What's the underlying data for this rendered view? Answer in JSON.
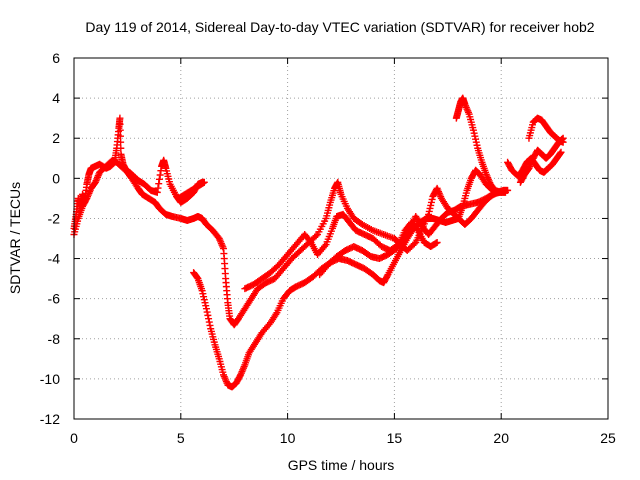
{
  "chart_data": {
    "type": "scatter",
    "title": "Day 119 of 2014, Sidereal Day-to-day VTEC variation (SDTVAR) for receiver hob2",
    "xlabel": "GPS time / hours",
    "ylabel": "SDTVAR / TECUs",
    "xlim": [
      0,
      25
    ],
    "ylim": [
      -12,
      6
    ],
    "xticks": [
      "0",
      "5",
      "10",
      "15",
      "20",
      "25"
    ],
    "yticks": [
      "-12",
      "-10",
      "-8",
      "-6",
      "-4",
      "-2",
      "0",
      "2",
      "4",
      "6"
    ],
    "grid": true,
    "marker": "+",
    "color": "#ff0000",
    "series": [
      {
        "points": [
          [
            0.0,
            -2.5
          ],
          [
            0.1,
            -1.8
          ],
          [
            0.2,
            -1.0
          ],
          [
            0.3,
            -1.5
          ],
          [
            0.4,
            -0.8
          ],
          [
            0.5,
            -1.2
          ],
          [
            0.6,
            -0.3
          ],
          [
            0.7,
            0.2
          ],
          [
            0.8,
            0.5
          ],
          [
            1.0,
            0.6
          ],
          [
            1.2,
            0.7
          ],
          [
            1.5,
            0.5
          ],
          [
            1.7,
            0.6
          ],
          [
            1.9,
            0.8
          ],
          [
            2.0,
            1.5
          ],
          [
            2.1,
            2.5
          ],
          [
            2.15,
            3.0
          ],
          [
            2.2,
            1.2
          ],
          [
            2.3,
            0.7
          ],
          [
            2.5,
            0.3
          ],
          [
            2.7,
            0.0
          ],
          [
            3.0,
            -0.5
          ],
          [
            3.2,
            -0.8
          ],
          [
            3.5,
            -1.0
          ],
          [
            3.8,
            -1.2
          ],
          [
            4.0,
            -1.5
          ],
          [
            4.3,
            -1.8
          ],
          [
            4.6,
            -1.9
          ],
          [
            5.0,
            -2.0
          ],
          [
            5.3,
            -2.1
          ],
          [
            5.6,
            -2.0
          ],
          [
            5.8,
            -1.9
          ],
          [
            6.0,
            -2.0
          ],
          [
            6.2,
            -2.3
          ],
          [
            6.5,
            -2.6
          ],
          [
            6.8,
            -3.0
          ],
          [
            7.0,
            -3.5
          ],
          [
            7.1,
            -5.0
          ],
          [
            7.2,
            -6.2
          ],
          [
            7.3,
            -7.0
          ],
          [
            7.5,
            -7.3
          ],
          [
            7.7,
            -7.0
          ],
          [
            8.0,
            -6.5
          ],
          [
            8.3,
            -6.0
          ],
          [
            8.6,
            -5.5
          ],
          [
            9.0,
            -5.2
          ],
          [
            9.4,
            -5.0
          ],
          [
            9.8,
            -4.5
          ],
          [
            10.2,
            -4.0
          ],
          [
            10.6,
            -3.6
          ],
          [
            11.0,
            -3.2
          ],
          [
            11.4,
            -2.8
          ],
          [
            11.8,
            -2.0
          ],
          [
            12.0,
            -1.2
          ],
          [
            12.2,
            -0.5
          ],
          [
            12.35,
            -0.2
          ],
          [
            12.5,
            -0.8
          ],
          [
            12.8,
            -1.5
          ],
          [
            13.1,
            -2.0
          ],
          [
            13.5,
            -2.3
          ],
          [
            14.0,
            -2.6
          ],
          [
            14.5,
            -2.8
          ],
          [
            15.0,
            -3.0
          ],
          [
            15.3,
            -3.3
          ],
          [
            15.6,
            -3.6
          ],
          [
            16.0,
            -3.2
          ],
          [
            16.3,
            -2.5
          ],
          [
            16.6,
            -1.8
          ],
          [
            16.8,
            -0.9
          ],
          [
            17.0,
            -0.5
          ],
          [
            17.2,
            -1.0
          ],
          [
            17.5,
            -1.5
          ],
          [
            17.8,
            -1.8
          ],
          [
            18.0,
            -2.0
          ],
          [
            18.3,
            -2.3
          ],
          [
            18.6,
            -2.0
          ],
          [
            18.9,
            -1.6
          ],
          [
            19.2,
            -1.2
          ],
          [
            19.5,
            -0.9
          ],
          [
            19.8,
            -0.7
          ],
          [
            20.1,
            -0.6
          ],
          [
            20.3,
            -0.6
          ]
        ]
      },
      {
        "points": [
          [
            0.0,
            -2.8
          ],
          [
            0.2,
            -2.0
          ],
          [
            0.4,
            -1.4
          ],
          [
            0.6,
            -1.0
          ],
          [
            0.8,
            -0.5
          ],
          [
            1.0,
            -0.2
          ],
          [
            1.2,
            0.3
          ],
          [
            1.5,
            0.6
          ],
          [
            1.8,
            0.9
          ],
          [
            2.0,
            0.8
          ],
          [
            2.3,
            0.5
          ],
          [
            2.6,
            0.3
          ],
          [
            2.8,
            0.1
          ],
          [
            3.0,
            -0.1
          ],
          [
            3.3,
            -0.3
          ],
          [
            3.6,
            -0.6
          ],
          [
            3.9,
            -0.7
          ],
          [
            4.1,
            0.6
          ],
          [
            4.2,
            0.9
          ],
          [
            4.3,
            0.5
          ],
          [
            4.5,
            -0.3
          ],
          [
            4.8,
            -0.9
          ],
          [
            5.0,
            -1.2
          ],
          [
            5.3,
            -1.0
          ],
          [
            5.6,
            -0.7
          ],
          [
            5.8,
            -0.3
          ],
          [
            6.0,
            -0.2
          ],
          [
            6.1,
            -0.2
          ],
          [
            5.8,
            -0.4
          ],
          [
            5.5,
            -0.6
          ],
          [
            5.2,
            -0.8
          ],
          [
            4.9,
            -1.0
          ]
        ]
      },
      {
        "points": [
          [
            5.6,
            -4.7
          ],
          [
            5.8,
            -5.0
          ],
          [
            6.0,
            -5.6
          ],
          [
            6.2,
            -6.5
          ],
          [
            6.4,
            -7.5
          ],
          [
            6.6,
            -8.3
          ],
          [
            6.8,
            -9.0
          ],
          [
            7.0,
            -9.8
          ],
          [
            7.2,
            -10.3
          ],
          [
            7.4,
            -10.4
          ],
          [
            7.6,
            -10.2
          ],
          [
            7.8,
            -9.8
          ],
          [
            8.0,
            -9.3
          ],
          [
            8.2,
            -8.7
          ],
          [
            8.5,
            -8.2
          ],
          [
            8.8,
            -7.7
          ],
          [
            9.2,
            -7.2
          ],
          [
            9.5,
            -6.7
          ],
          [
            9.8,
            -6.0
          ],
          [
            10.1,
            -5.6
          ],
          [
            10.4,
            -5.4
          ],
          [
            10.8,
            -5.2
          ],
          [
            11.2,
            -4.9
          ],
          [
            11.6,
            -4.5
          ],
          [
            12.0,
            -4.2
          ],
          [
            12.4,
            -4.0
          ],
          [
            12.8,
            -4.1
          ],
          [
            13.2,
            -4.3
          ],
          [
            13.6,
            -4.5
          ],
          [
            14.0,
            -4.8
          ],
          [
            14.3,
            -5.1
          ],
          [
            14.5,
            -5.2
          ],
          [
            14.7,
            -4.8
          ],
          [
            15.0,
            -4.2
          ],
          [
            15.3,
            -3.6
          ],
          [
            15.6,
            -3.0
          ],
          [
            15.9,
            -2.5
          ],
          [
            16.2,
            -2.2
          ],
          [
            16.5,
            -2.0
          ],
          [
            16.8,
            -2.0
          ],
          [
            17.1,
            -2.1
          ],
          [
            17.4,
            -2.2
          ],
          [
            17.7,
            -2.1
          ],
          [
            18.0,
            -2.0
          ],
          [
            18.2,
            -1.4
          ],
          [
            18.4,
            -0.6
          ],
          [
            18.6,
            0.0
          ],
          [
            18.8,
            0.4
          ],
          [
            19.0,
            0.2
          ],
          [
            19.3,
            -0.3
          ],
          [
            19.6,
            -0.6
          ],
          [
            19.9,
            -0.7
          ],
          [
            20.2,
            -0.7
          ]
        ]
      },
      {
        "points": [
          [
            8.0,
            -5.5
          ],
          [
            8.4,
            -5.3
          ],
          [
            8.8,
            -5.0
          ],
          [
            9.2,
            -4.7
          ],
          [
            9.6,
            -4.3
          ],
          [
            10.0,
            -3.8
          ],
          [
            10.4,
            -3.3
          ],
          [
            10.8,
            -2.8
          ],
          [
            11.1,
            -3.2
          ],
          [
            11.4,
            -3.8
          ],
          [
            11.8,
            -3.3
          ],
          [
            12.1,
            -2.5
          ],
          [
            12.3,
            -1.9
          ],
          [
            12.6,
            -1.8
          ],
          [
            12.9,
            -2.2
          ],
          [
            13.2,
            -2.6
          ],
          [
            13.6,
            -2.8
          ],
          [
            14.0,
            -3.0
          ],
          [
            14.4,
            -3.4
          ],
          [
            14.8,
            -3.6
          ],
          [
            15.2,
            -3.3
          ],
          [
            15.5,
            -2.6
          ],
          [
            15.8,
            -2.2
          ],
          [
            16.1,
            -2.6
          ],
          [
            16.4,
            -3.2
          ],
          [
            16.7,
            -3.4
          ],
          [
            17.0,
            -3.2
          ]
        ]
      },
      {
        "points": [
          [
            11.5,
            -4.8
          ],
          [
            11.9,
            -4.3
          ],
          [
            12.3,
            -3.9
          ],
          [
            12.7,
            -3.6
          ],
          [
            13.1,
            -3.4
          ],
          [
            13.5,
            -3.6
          ],
          [
            13.9,
            -3.9
          ],
          [
            14.3,
            -4.0
          ],
          [
            14.7,
            -3.8
          ],
          [
            15.1,
            -3.5
          ],
          [
            15.5,
            -3.0
          ],
          [
            15.8,
            -2.4
          ],
          [
            16.0,
            -1.9
          ],
          [
            16.3,
            -2.4
          ],
          [
            16.6,
            -2.8
          ],
          [
            16.9,
            -2.4
          ],
          [
            17.2,
            -2.0
          ],
          [
            17.5,
            -1.7
          ],
          [
            17.8,
            -1.6
          ],
          [
            18.1,
            -1.4
          ],
          [
            18.5,
            -1.3
          ],
          [
            18.9,
            -1.2
          ],
          [
            19.3,
            -1.0
          ],
          [
            19.6,
            -0.8
          ],
          [
            19.9,
            -0.7
          ]
        ]
      },
      {
        "points": [
          [
            17.9,
            3.0
          ],
          [
            18.0,
            3.4
          ],
          [
            18.1,
            3.8
          ],
          [
            18.2,
            4.0
          ],
          [
            18.3,
            3.7
          ],
          [
            18.5,
            3.2
          ],
          [
            18.7,
            2.4
          ],
          [
            18.9,
            1.5
          ],
          [
            19.1,
            0.8
          ],
          [
            19.3,
            0.2
          ],
          [
            19.5,
            -0.3
          ],
          [
            19.7,
            -0.6
          ],
          [
            20.0,
            -0.7
          ]
        ]
      },
      {
        "points": [
          [
            20.3,
            0.8
          ],
          [
            20.5,
            0.4
          ],
          [
            20.8,
            0.1
          ],
          [
            21.0,
            0.4
          ],
          [
            21.2,
            0.8
          ],
          [
            21.4,
            1.0
          ],
          [
            21.6,
            0.7
          ],
          [
            21.8,
            0.4
          ],
          [
            22.0,
            0.3
          ],
          [
            22.2,
            0.5
          ],
          [
            22.4,
            0.7
          ],
          [
            22.6,
            1.0
          ],
          [
            22.8,
            1.3
          ]
        ]
      },
      {
        "points": [
          [
            20.9,
            -0.2
          ],
          [
            21.1,
            0.2
          ],
          [
            21.3,
            0.5
          ],
          [
            21.5,
            1.0
          ],
          [
            21.7,
            1.4
          ],
          [
            21.9,
            1.2
          ],
          [
            22.1,
            1.0
          ],
          [
            22.3,
            1.2
          ],
          [
            22.5,
            1.5
          ],
          [
            22.7,
            1.8
          ],
          [
            22.9,
            2.0
          ]
        ]
      },
      {
        "points": [
          [
            21.3,
            2.0
          ],
          [
            21.5,
            2.8
          ],
          [
            21.7,
            3.0
          ],
          [
            21.9,
            2.9
          ],
          [
            22.1,
            2.6
          ],
          [
            22.3,
            2.3
          ],
          [
            22.5,
            2.1
          ],
          [
            22.7,
            1.9
          ],
          [
            22.9,
            1.8
          ]
        ]
      }
    ]
  }
}
